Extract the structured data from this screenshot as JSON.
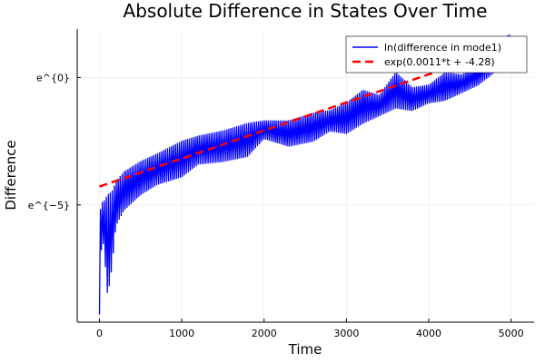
{
  "chart_data": {
    "type": "line",
    "title": "Absolute Difference in States Over Time",
    "xlabel": "Time",
    "ylabel": "Difference",
    "xlim": [
      -270,
      5280
    ],
    "ylim": [
      -9.6,
      1.9
    ],
    "log_scale_y": true,
    "grid": true,
    "legend_position": "top-right",
    "x_ticks": [
      {
        "value": 0,
        "label": "0"
      },
      {
        "value": 1000,
        "label": "1000"
      },
      {
        "value": 2000,
        "label": "2000"
      },
      {
        "value": 3000,
        "label": "3000"
      },
      {
        "value": 4000,
        "label": "4000"
      },
      {
        "value": 5000,
        "label": "5000"
      }
    ],
    "y_ticks": [
      {
        "value": 0,
        "label": "e^{0}"
      },
      {
        "value": -5,
        "label": "e^{−5}"
      }
    ],
    "series": [
      {
        "name": "ln(difference in mode1)",
        "color": "#0000ff",
        "style": "solid",
        "x": [
          0,
          20,
          50,
          100,
          150,
          200,
          300,
          500,
          700,
          1000,
          1200,
          1500,
          1800,
          2000,
          2300,
          2600,
          2800,
          3000,
          3200,
          3400,
          3600,
          3800,
          4000,
          4200,
          4400,
          4600,
          4800,
          5000
        ],
        "upper": [
          -5.6,
          -4.9,
          -4.9,
          -4.6,
          -4.5,
          -4.1,
          -3.7,
          -3.3,
          -3.0,
          -2.5,
          -2.3,
          -2.1,
          -1.8,
          -1.7,
          -1.7,
          -1.4,
          -1.3,
          -1.0,
          -0.5,
          -0.7,
          0.2,
          -0.4,
          -0.3,
          0.2,
          0.1,
          0.5,
          1.4,
          1.7
        ],
        "lower": [
          -9.3,
          -6.8,
          -6.5,
          -8.6,
          -7.5,
          -5.8,
          -5.2,
          -4.6,
          -4.2,
          -3.9,
          -3.4,
          -3.3,
          -3.1,
          -2.4,
          -2.7,
          -2.5,
          -2.1,
          -2.2,
          -1.8,
          -1.5,
          -1.2,
          -1.3,
          -1.0,
          -0.9,
          -0.6,
          -0.3,
          0.2,
          0.4
        ]
      },
      {
        "name": "exp(0.0011*t + -4.28)",
        "color": "#ff0000",
        "style": "dashed",
        "x": [
          0,
          5000
        ],
        "y": [
          -4.28,
          1.22
        ]
      }
    ]
  }
}
